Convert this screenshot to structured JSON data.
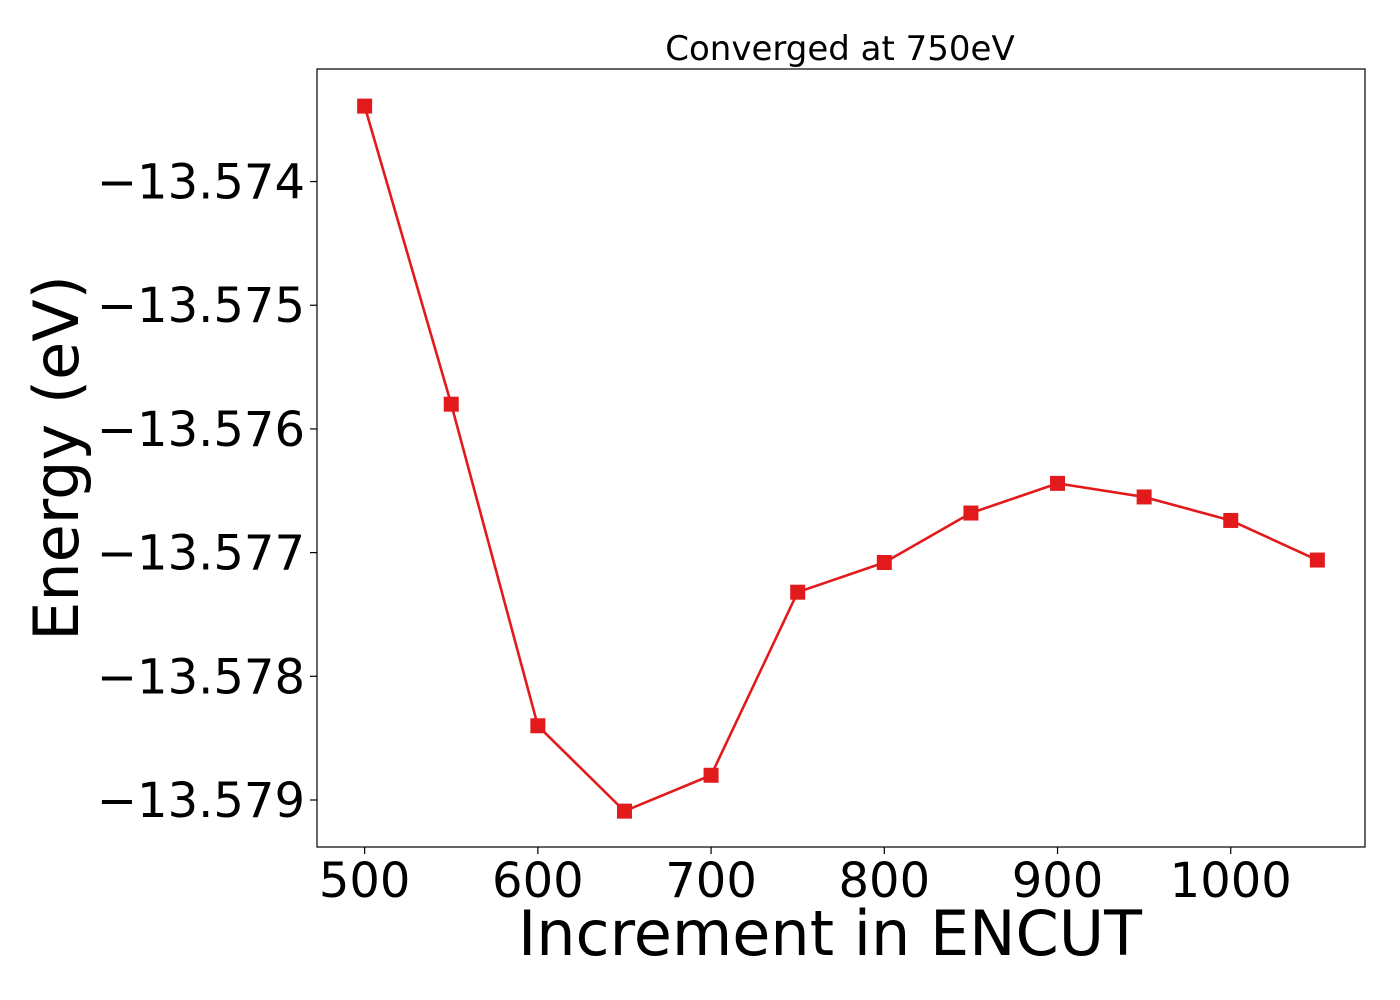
{
  "chart_data": {
    "type": "line",
    "title": "Converged at 750eV",
    "xlabel": "Increment in ENCUT",
    "ylabel": "Energy (eV)",
    "xlim": [
      472.5,
      1077.5
    ],
    "ylim": [
      -13.57938,
      -13.57309
    ],
    "x_ticks": [
      500,
      600,
      700,
      800,
      900,
      1000
    ],
    "x_tick_labels": [
      "500",
      "600",
      "700",
      "800",
      "900",
      "1000"
    ],
    "y_ticks": [
      -13.574,
      -13.575,
      -13.576,
      -13.577,
      -13.578,
      -13.579
    ],
    "y_tick_labels": [
      "−13.574",
      "−13.575",
      "−13.576",
      "−13.577",
      "−13.578",
      "−13.579"
    ],
    "grid": false,
    "legend": "none",
    "series": [
      {
        "color": "#e31a1c",
        "marker": "square",
        "x": [
          500,
          550,
          600,
          650,
          700,
          750,
          800,
          850,
          900,
          950,
          1000,
          1050
        ],
        "y": [
          -13.57339,
          -13.5758,
          -13.5784,
          -13.57909,
          -13.5788,
          -13.57732,
          -13.57708,
          -13.57668,
          -13.57644,
          -13.57655,
          -13.57674,
          -13.57706
        ]
      }
    ]
  }
}
